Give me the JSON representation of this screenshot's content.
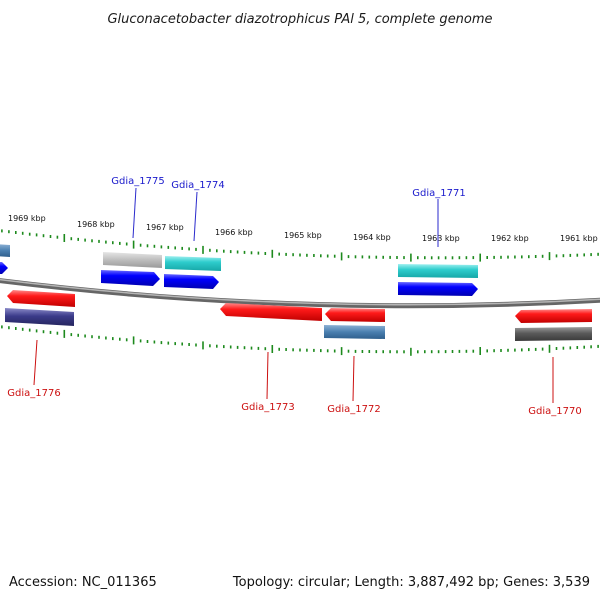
{
  "title": "Gluconacetobacter diazotrophicus PAl 5, complete genome",
  "footer": {
    "accession": "Accession: NC_011365",
    "summary": "Topology: circular; Length: 3,887,492 bp; Genes: 3,539"
  },
  "colors": {
    "forward_label": "#1a1acc",
    "reverse_label": "#cc1010",
    "tick": "#1d8a1d",
    "backbone": "#8a8a8a"
  },
  "scale_labels": [
    "1969 kbp",
    "1968 kbp",
    "1967 kbp",
    "1966 kbp",
    "1965 kbp",
    "1964 kbp",
    "1963 kbp",
    "1962 kbp",
    "1961 kbp"
  ],
  "genes": [
    {
      "label": "Gdia_1775",
      "strand": "+"
    },
    {
      "label": "Gdia_1774",
      "strand": "+"
    },
    {
      "label": "Gdia_1771",
      "strand": "+"
    },
    {
      "label": "Gdia_1776",
      "strand": "-"
    },
    {
      "label": "Gdia_1773",
      "strand": "-"
    },
    {
      "label": "Gdia_1772",
      "strand": "-"
    },
    {
      "label": "Gdia_1770",
      "strand": "-"
    }
  ]
}
